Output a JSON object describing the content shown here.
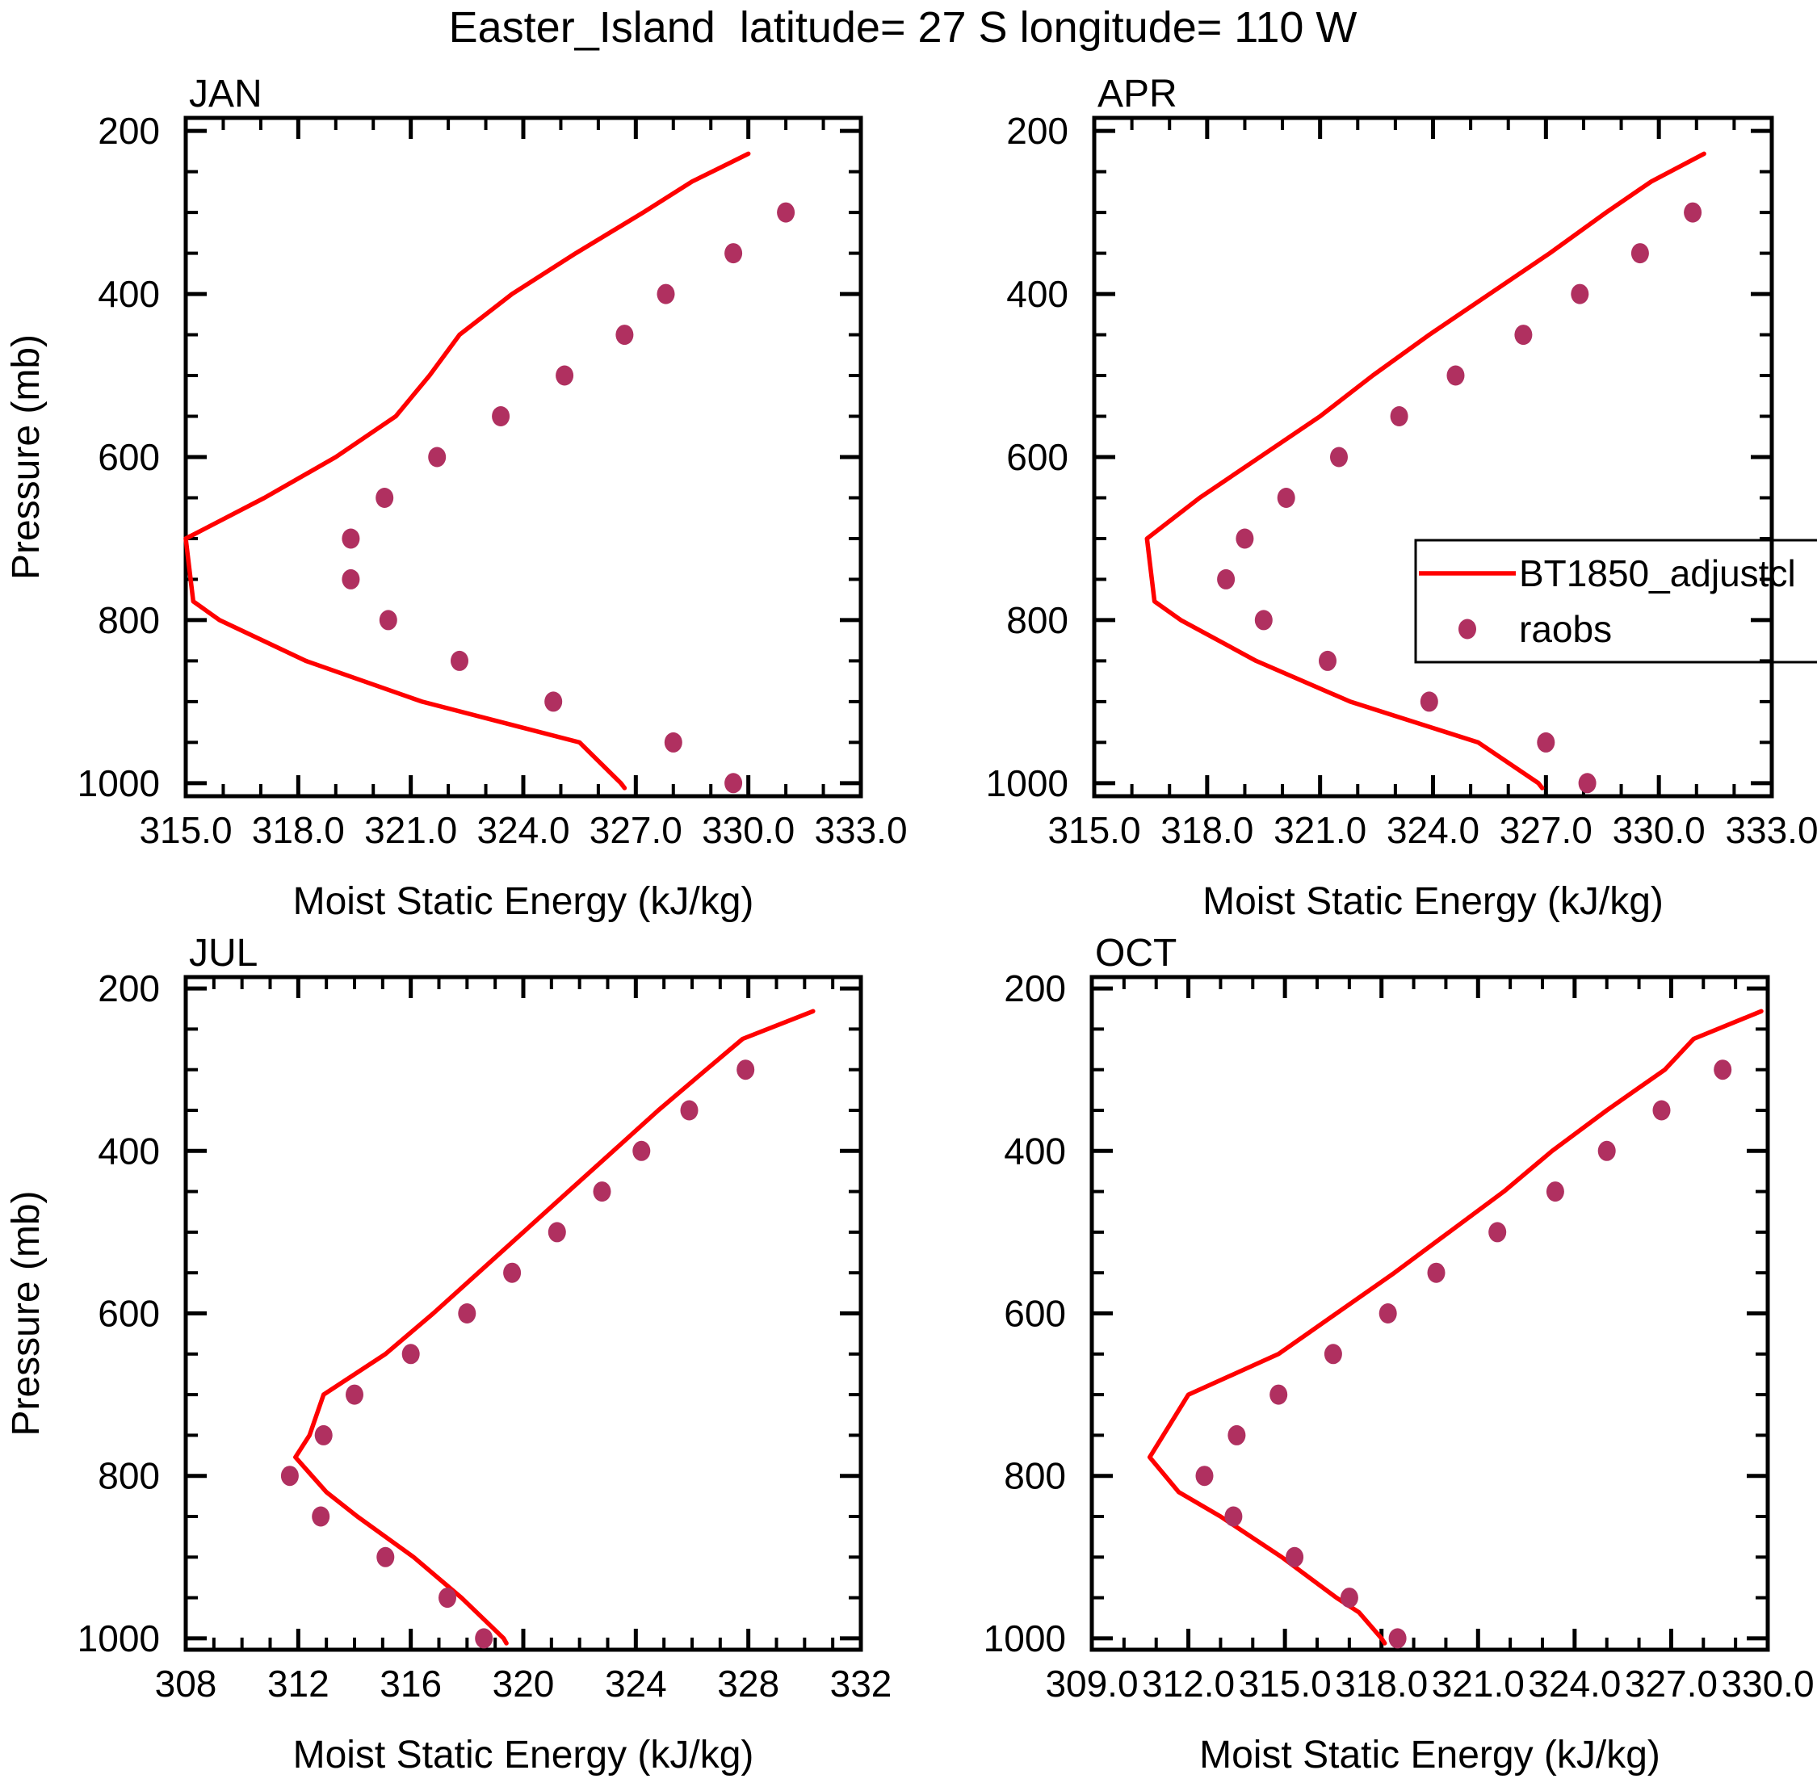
{
  "title": "Easter_Island  latitude= 27 S longitude= 110 W",
  "colors": {
    "model_line": "#ff0000",
    "raobs_dot": "#b03060",
    "axis": "#000000",
    "background": "#ffffff"
  },
  "legend": {
    "entries": [
      {
        "label": "BT1850_adjustcl",
        "marker": "line",
        "color": "#ff0000"
      },
      {
        "label": "raobs",
        "marker": "dot",
        "color": "#b03060"
      }
    ]
  },
  "chart_data": [
    {
      "panel": "JAN",
      "type": "line+scatter",
      "xlabel": "Moist Static Energy (kJ/kg)",
      "ylabel": "Pressure (mb)",
      "y_direction": "increasing-downward",
      "grid": false,
      "xlim": [
        315.0,
        333.0
      ],
      "xticks": [
        315,
        318,
        321,
        324,
        327,
        330,
        333
      ],
      "xtick_labels": [
        "315.0",
        "318.0",
        "321.0",
        "324.0",
        "327.0",
        "330.0",
        "333.0"
      ],
      "x_minor_step": 1.0,
      "ylim": [
        184,
        1016
      ],
      "yticks": [
        200,
        400,
        600,
        800,
        1000
      ],
      "ytick_labels": [
        "200",
        "400",
        "600",
        "800",
        "1000"
      ],
      "y_minor_step": 50,
      "series": [
        {
          "name": "BT1850_adjustcl",
          "type": "line",
          "color": "#ff0000",
          "points": [
            [
              228,
              330.0
            ],
            [
              262,
              328.5
            ],
            [
              300,
              327.2
            ],
            [
              350,
              325.4
            ],
            [
              400,
              323.7
            ],
            [
              450,
              322.3
            ],
            [
              500,
              321.5
            ],
            [
              550,
              320.6
            ],
            [
              600,
              319.0
            ],
            [
              650,
              317.1
            ],
            [
              700,
              315.0
            ],
            [
              777,
              315.2
            ],
            [
              800,
              315.9
            ],
            [
              850,
              318.2
            ],
            [
              900,
              321.3
            ],
            [
              950,
              325.5
            ],
            [
              1000,
              326.6
            ],
            [
              1006,
              326.7
            ]
          ]
        },
        {
          "name": "raobs",
          "type": "scatter",
          "color": "#b03060",
          "points": [
            [
              300,
              331.0
            ],
            [
              350,
              329.6
            ],
            [
              400,
              327.8
            ],
            [
              450,
              326.7
            ],
            [
              500,
              325.1
            ],
            [
              550,
              323.4
            ],
            [
              600,
              321.7
            ],
            [
              650,
              320.3
            ],
            [
              700,
              319.4
            ],
            [
              750,
              319.4
            ],
            [
              800,
              320.4
            ],
            [
              850,
              322.3
            ],
            [
              900,
              324.8
            ],
            [
              950,
              328.0
            ],
            [
              1000,
              329.6
            ]
          ]
        }
      ]
    },
    {
      "panel": "APR",
      "type": "line+scatter",
      "xlabel": "Moist Static Energy (kJ/kg)",
      "ylabel": "",
      "y_direction": "increasing-downward",
      "grid": false,
      "xlim": [
        315.0,
        333.0
      ],
      "xticks": [
        315,
        318,
        321,
        324,
        327,
        330,
        333
      ],
      "xtick_labels": [
        "315.0",
        "318.0",
        "321.0",
        "324.0",
        "327.0",
        "330.0",
        "333.0"
      ],
      "x_minor_step": 1.0,
      "ylim": [
        184,
        1016
      ],
      "yticks": [
        200,
        400,
        600,
        800,
        1000
      ],
      "ytick_labels": [
        "200",
        "400",
        "600",
        "800",
        "1000"
      ],
      "y_minor_step": 50,
      "series": [
        {
          "name": "BT1850_adjustcl",
          "type": "line",
          "color": "#ff0000",
          "points": [
            [
              228,
              331.2
            ],
            [
              262,
              329.8
            ],
            [
              300,
              328.6
            ],
            [
              350,
              327.1
            ],
            [
              400,
              325.5
            ],
            [
              450,
              323.9
            ],
            [
              500,
              322.4
            ],
            [
              550,
              321.0
            ],
            [
              600,
              319.4
            ],
            [
              650,
              317.8
            ],
            [
              700,
              316.4
            ],
            [
              777,
              316.6
            ],
            [
              800,
              317.3
            ],
            [
              850,
              319.3
            ],
            [
              900,
              321.8
            ],
            [
              950,
              325.2
            ],
            [
              1000,
              326.8
            ],
            [
              1006,
              326.9
            ]
          ]
        },
        {
          "name": "raobs",
          "type": "scatter",
          "color": "#b03060",
          "points": [
            [
              300,
              330.9
            ],
            [
              350,
              329.5
            ],
            [
              400,
              327.9
            ],
            [
              450,
              326.4
            ],
            [
              500,
              324.6
            ],
            [
              550,
              323.1
            ],
            [
              600,
              321.5
            ],
            [
              650,
              320.1
            ],
            [
              700,
              319.0
            ],
            [
              750,
              318.5
            ],
            [
              800,
              319.5
            ],
            [
              850,
              321.2
            ],
            [
              900,
              323.9
            ],
            [
              950,
              327.0
            ],
            [
              1000,
              328.1
            ]
          ]
        }
      ]
    },
    {
      "panel": "JUL",
      "type": "line+scatter",
      "xlabel": "Moist Static Energy (kJ/kg)",
      "ylabel": "Pressure (mb)",
      "y_direction": "increasing-downward",
      "grid": false,
      "xlim": [
        308,
        332
      ],
      "xticks": [
        308,
        312,
        316,
        320,
        324,
        328,
        332
      ],
      "xtick_labels": [
        "308",
        "312",
        "316",
        "320",
        "324",
        "328",
        "332"
      ],
      "x_minor_step": 1.0,
      "ylim": [
        186,
        1014
      ],
      "yticks": [
        200,
        400,
        600,
        800,
        1000
      ],
      "ytick_labels": [
        "200",
        "400",
        "600",
        "800",
        "1000"
      ],
      "y_minor_step": 50,
      "series": [
        {
          "name": "BT1850_adjustcl",
          "type": "line",
          "color": "#ff0000",
          "points": [
            [
              228,
              330.3
            ],
            [
              262,
              327.8
            ],
            [
              300,
              326.5
            ],
            [
              350,
              324.8
            ],
            [
              400,
              323.2
            ],
            [
              450,
              321.6
            ],
            [
              500,
              320.0
            ],
            [
              550,
              318.4
            ],
            [
              600,
              316.8
            ],
            [
              650,
              315.1
            ],
            [
              700,
              312.9
            ],
            [
              750,
              312.4
            ],
            [
              777,
              311.9
            ],
            [
              820,
              313.0
            ],
            [
              850,
              314.1
            ],
            [
              900,
              316.1
            ],
            [
              950,
              317.8
            ],
            [
              970,
              318.4
            ],
            [
              1000,
              319.3
            ],
            [
              1006,
              319.4
            ]
          ]
        },
        {
          "name": "raobs",
          "type": "scatter",
          "color": "#b03060",
          "points": [
            [
              300,
              327.9
            ],
            [
              350,
              325.9
            ],
            [
              400,
              324.2
            ],
            [
              450,
              322.8
            ],
            [
              500,
              321.2
            ],
            [
              550,
              319.6
            ],
            [
              600,
              318.0
            ],
            [
              650,
              316.0
            ],
            [
              700,
              314.0
            ],
            [
              750,
              312.9
            ],
            [
              800,
              311.7
            ],
            [
              850,
              312.8
            ],
            [
              900,
              315.1
            ],
            [
              950,
              317.3
            ],
            [
              1000,
              318.6
            ]
          ]
        }
      ]
    },
    {
      "panel": "OCT",
      "type": "line+scatter",
      "xlabel": "Moist Static Energy (kJ/kg)",
      "ylabel": "",
      "y_direction": "increasing-downward",
      "grid": false,
      "xlim": [
        309.0,
        330.0
      ],
      "xticks": [
        309,
        312,
        315,
        318,
        321,
        324,
        327,
        330
      ],
      "xtick_labels": [
        "309.0",
        "312.0",
        "315.0",
        "318.0",
        "321.0",
        "324.0",
        "327.0",
        "330.0"
      ],
      "x_minor_step": 1.0,
      "ylim": [
        186,
        1014
      ],
      "yticks": [
        200,
        400,
        600,
        800,
        1000
      ],
      "ytick_labels": [
        "200",
        "400",
        "600",
        "800",
        "1000"
      ],
      "y_minor_step": 50,
      "series": [
        {
          "name": "BT1850_adjustcl",
          "type": "line",
          "color": "#ff0000",
          "points": [
            [
              228,
              329.8
            ],
            [
              262,
              327.7
            ],
            [
              300,
              326.8
            ],
            [
              350,
              325.0
            ],
            [
              400,
              323.3
            ],
            [
              450,
              321.8
            ],
            [
              500,
              320.1
            ],
            [
              550,
              318.4
            ],
            [
              600,
              316.6
            ],
            [
              650,
              314.8
            ],
            [
              700,
              312.0
            ],
            [
              777,
              310.8
            ],
            [
              820,
              311.7
            ],
            [
              850,
              313.0
            ],
            [
              900,
              314.9
            ],
            [
              950,
              316.6
            ],
            [
              968,
              317.3
            ],
            [
              1000,
              318.0
            ],
            [
              1006,
              318.1
            ]
          ]
        },
        {
          "name": "raobs",
          "type": "scatter",
          "color": "#b03060",
          "points": [
            [
              300,
              328.6
            ],
            [
              350,
              326.7
            ],
            [
              400,
              325.0
            ],
            [
              450,
              323.4
            ],
            [
              500,
              321.6
            ],
            [
              550,
              319.7
            ],
            [
              600,
              318.2
            ],
            [
              650,
              316.5
            ],
            [
              700,
              314.8
            ],
            [
              750,
              313.5
            ],
            [
              800,
              312.5
            ],
            [
              850,
              313.4
            ],
            [
              900,
              315.3
            ],
            [
              950,
              317.0
            ],
            [
              1000,
              318.5
            ]
          ]
        }
      ]
    }
  ]
}
